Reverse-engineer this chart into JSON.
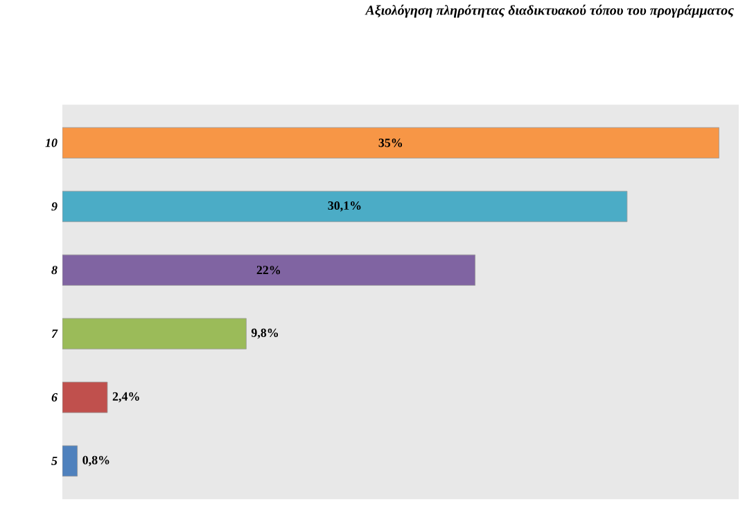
{
  "chart_data": {
    "type": "bar",
    "orientation": "horizontal",
    "title": "Αξιολόγηση πληρότητας διαδικτυακού τόπου του προγράμματος",
    "categories": [
      "10",
      "9",
      "8",
      "7",
      "6",
      "5"
    ],
    "values": [
      35,
      30.1,
      22,
      9.8,
      2.4,
      0.8
    ],
    "value_labels": [
      "35%",
      "30,1%",
      "22%",
      "9,8%",
      "2,4%",
      "0,8%"
    ],
    "colors": [
      "#f79646",
      "#4bacc6",
      "#8064a2",
      "#9bbb59",
      "#c0504d",
      "#4f81bd"
    ]
  }
}
